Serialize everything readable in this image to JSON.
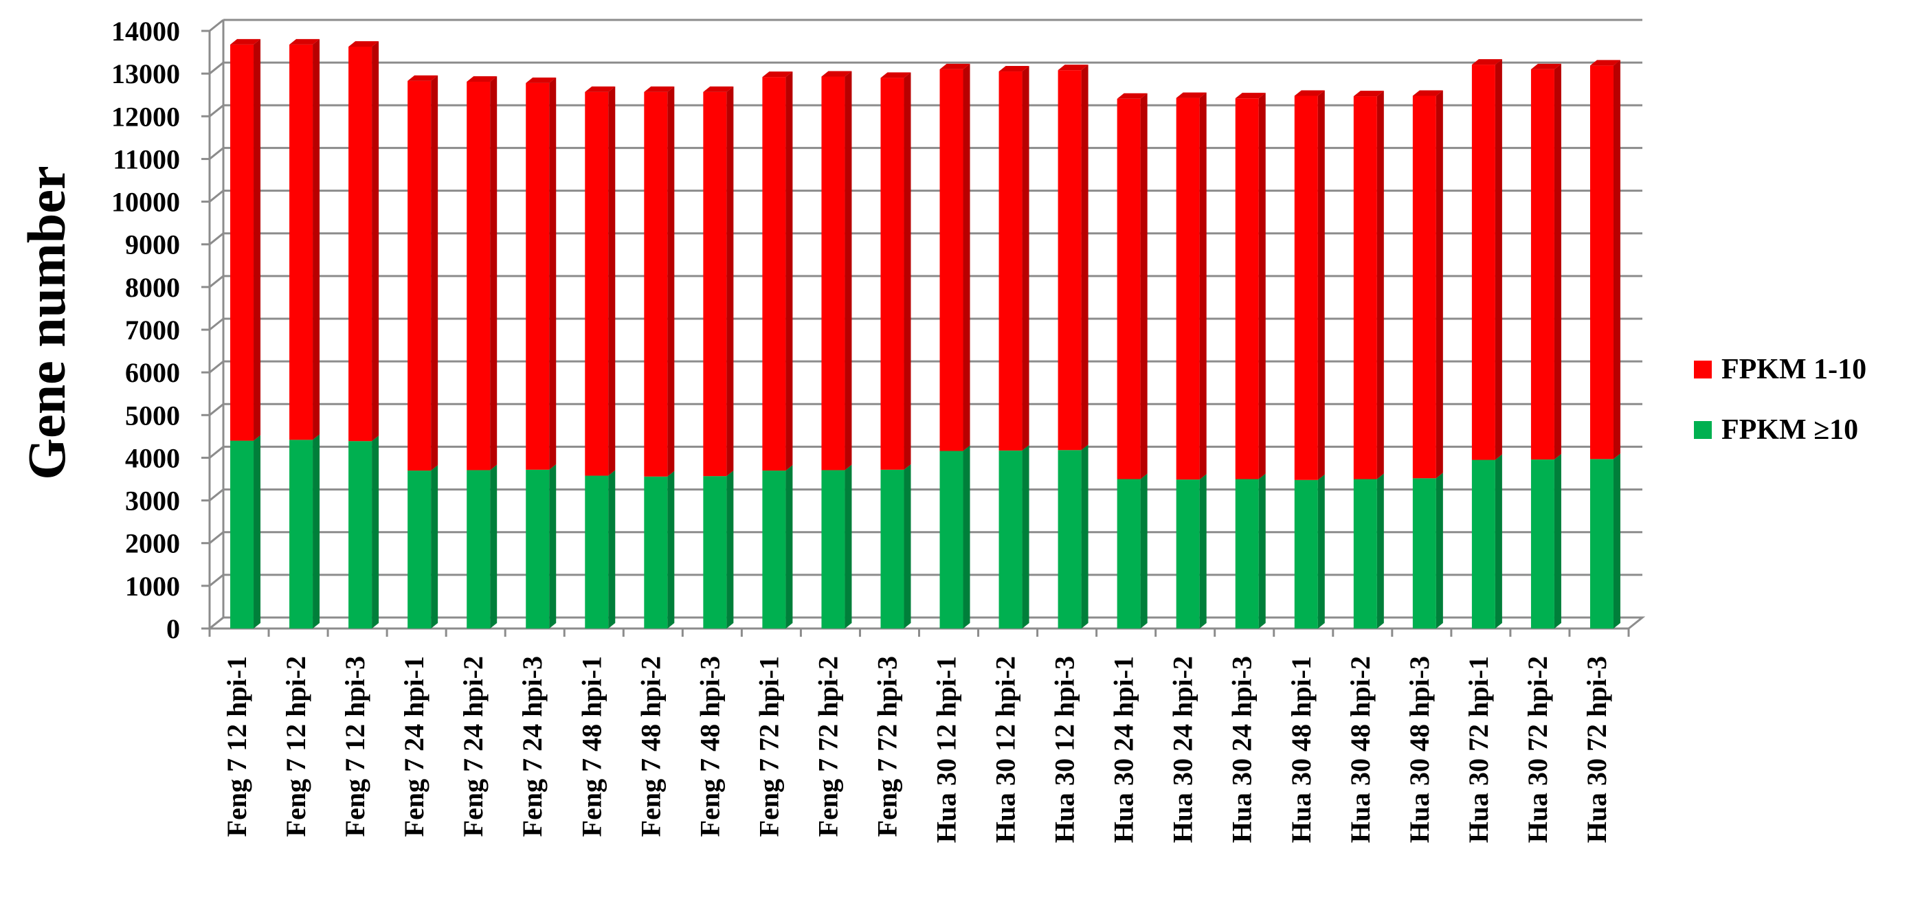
{
  "chart_data": {
    "type": "bar",
    "stacked": true,
    "three_d": true,
    "ylabel": "Gene number",
    "ylim": [
      0,
      14000
    ],
    "ytick_step": 1000,
    "grid": true,
    "legend_position": "right",
    "categories": [
      "Feng 7 12 hpi-1",
      "Feng 7 12 hpi-2",
      "Feng 7 12 hpi-3",
      "Feng 7 24 hpi-1",
      "Feng 7 24 hpi-2",
      "Feng 7 24 hpi-3",
      "Feng 7 48 hpi-1",
      "Feng 7 48 hpi-2",
      "Feng 7 48 hpi-3",
      "Feng 7 72 hpi-1",
      "Feng 7 72 hpi-2",
      "Feng 7 72 hpi-3",
      "Hua 30 12 hpi-1",
      "Hua 30 12 hpi-2",
      "Hua 30 12 hpi-3",
      "Hua 30 24 hpi-1",
      "Hua 30 24 hpi-2",
      "Hua 30 24 hpi-3",
      "Hua 30 48 hpi-1",
      "Hua 30 48 hpi-2",
      "Hua 30 48 hpi-3",
      "Hua 30 72 hpi-1",
      "Hua 30 72 hpi-2",
      "Hua 30 72 hpi-3"
    ],
    "series": [
      {
        "name": "FPKM ≥10",
        "color": "#00b050",
        "values": [
          4400,
          4420,
          4390,
          3700,
          3710,
          3720,
          3580,
          3560,
          3570,
          3700,
          3710,
          3720,
          4160,
          4170,
          4180,
          3500,
          3490,
          3500,
          3480,
          3500,
          3520,
          3950,
          3960,
          3970
        ]
      },
      {
        "name": "FPKM 1-10",
        "color": "#ff0000",
        "values": [
          9280,
          9260,
          9240,
          9130,
          9100,
          9060,
          8990,
          9010,
          9000,
          9220,
          9220,
          9180,
          8940,
          8880,
          8900,
          8910,
          8940,
          8920,
          9000,
          8970,
          8960,
          9260,
          9140,
          9220
        ]
      }
    ]
  },
  "legend": {
    "items": [
      {
        "label": "FPKM 1-10",
        "color": "#ff0000"
      },
      {
        "label": "FPKM ≥10",
        "color": "#00b050"
      }
    ]
  }
}
